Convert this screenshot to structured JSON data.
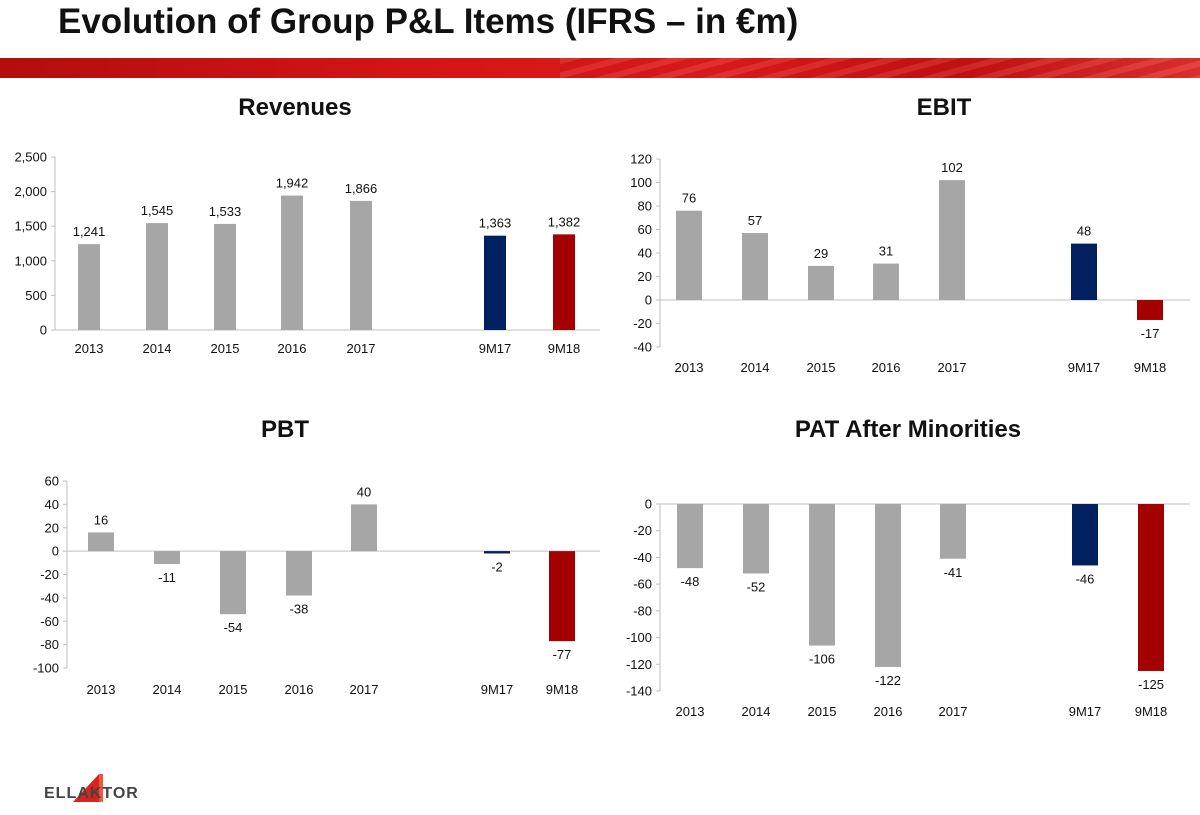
{
  "page": {
    "title": "Evolution of Group P&L Items (IFRS – in €m)"
  },
  "logo": {
    "text": "ELLAKTOR",
    "icon": "ellaktor-triangle-icon"
  },
  "colors": {
    "history": "#a6a6a6",
    "prior_period": "#002060",
    "current_period": "#a50000",
    "band": "#d41515"
  },
  "chart_data": [
    {
      "id": "revenues",
      "type": "bar",
      "title": "Revenues",
      "categories": [
        "2013",
        "2014",
        "2015",
        "2016",
        "2017",
        "",
        "9M17",
        "9M18"
      ],
      "values": [
        1241,
        1545,
        1533,
        1942,
        1866,
        null,
        1363,
        1382
      ],
      "value_labels": [
        "1,241",
        "1,545",
        "1,533",
        "1,942",
        "1,866",
        "",
        "1,363",
        "1,382"
      ],
      "ylim": [
        0,
        2500
      ],
      "yticks": [
        0,
        500,
        1000,
        1500,
        2000,
        2500
      ],
      "ytick_labels": [
        "0",
        "500",
        "1,000",
        "1,500",
        "2,000",
        "2,500"
      ],
      "xlabel": "",
      "ylabel": ""
    },
    {
      "id": "ebit",
      "type": "bar",
      "title": "EBIT",
      "categories": [
        "2013",
        "2014",
        "2015",
        "2016",
        "2017",
        "",
        "9M17",
        "9M18"
      ],
      "values": [
        76,
        57,
        29,
        31,
        102,
        null,
        48,
        -17
      ],
      "value_labels": [
        "76",
        "57",
        "29",
        "31",
        "102",
        "",
        "48",
        "-17"
      ],
      "ylim": [
        -40,
        120
      ],
      "yticks": [
        -40,
        -20,
        0,
        20,
        40,
        60,
        80,
        100,
        120
      ],
      "ytick_labels": [
        "-40",
        "-20",
        "0",
        "20",
        "40",
        "60",
        "80",
        "100",
        "120"
      ],
      "xlabel": "",
      "ylabel": ""
    },
    {
      "id": "pbt",
      "type": "bar",
      "title": "PBT",
      "categories": [
        "2013",
        "2014",
        "2015",
        "2016",
        "2017",
        "",
        "9M17",
        "9M18"
      ],
      "values": [
        16,
        -11,
        -54,
        -38,
        40,
        null,
        -2,
        -77
      ],
      "value_labels": [
        "16",
        "-11",
        "-54",
        "-38",
        "40",
        "",
        "-2",
        "-77"
      ],
      "ylim": [
        -100,
        60
      ],
      "yticks": [
        -100,
        -80,
        -60,
        -40,
        -20,
        0,
        20,
        40,
        60
      ],
      "ytick_labels": [
        "-100",
        "-80",
        "-60",
        "-40",
        "-20",
        "0",
        "20",
        "40",
        "60"
      ],
      "xlabel": "",
      "ylabel": ""
    },
    {
      "id": "pat",
      "type": "bar",
      "title": "PAT After Minorities",
      "categories": [
        "2013",
        "2014",
        "2015",
        "2016",
        "2017",
        "",
        "9M17",
        "9M18"
      ],
      "values": [
        -48,
        -52,
        -106,
        -122,
        -41,
        null,
        -46,
        -125
      ],
      "value_labels": [
        "-48",
        "-52",
        "-106",
        "-122",
        "-41",
        "",
        "-46",
        "-125"
      ],
      "ylim": [
        -140,
        0
      ],
      "yticks": [
        -140,
        -120,
        -100,
        -80,
        -60,
        -40,
        -20,
        0
      ],
      "ytick_labels": [
        "-140",
        "-120",
        "-100",
        "-80",
        "-60",
        "-40",
        "-20",
        "0"
      ],
      "xlabel": "",
      "ylabel": ""
    }
  ]
}
